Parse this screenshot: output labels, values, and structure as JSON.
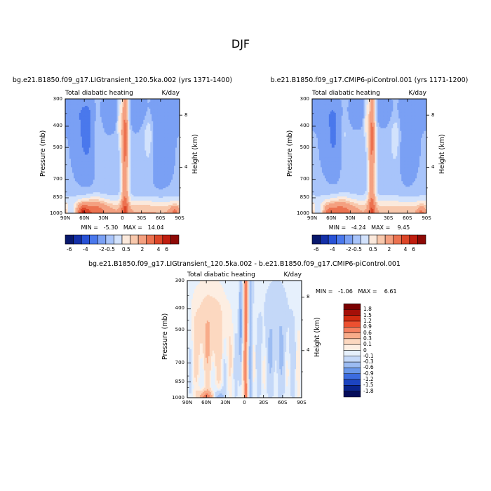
{
  "figure": {
    "title": "DJF"
  },
  "chart_data": [
    {
      "type": "heatmap",
      "title": "bg.e21.B1850.f09_g17.LIGtransient_120.5ka.002 (yrs 1371-1400)",
      "left_subtitle": "Total diabatic heating",
      "right_subtitle": "K/day",
      "xlabel": "",
      "ylabel": "Pressure (mb)",
      "y2label": "Height (km)",
      "x_ticks": [
        "90N",
        "60N",
        "30N",
        "0",
        "30S",
        "60S",
        "90S"
      ],
      "y_ticks": [
        "300",
        "400",
        "500",
        "700",
        "850",
        "1000"
      ],
      "y2_ticks": [
        "8",
        "4"
      ],
      "xlim": [
        90,
        -90
      ],
      "ylim": [
        1000,
        300
      ],
      "y_scale": "log",
      "stats": "MIN =   -5.30   MAX =   14.04",
      "min": -5.3,
      "max": 14.04,
      "colorbar_labels": [
        "-6",
        "-4",
        "-2",
        "-0.5",
        "0.5",
        "2",
        "4",
        "6"
      ]
    },
    {
      "type": "heatmap",
      "title": "b.e21.B1850.f09_g17.CMIP6-piControl.001 (yrs 1171-1200)",
      "left_subtitle": "Total diabatic heating",
      "right_subtitle": "K/day",
      "xlabel": "",
      "ylabel": "Pressure (mb)",
      "y2label": "Height (km)",
      "x_ticks": [
        "90N",
        "60N",
        "30N",
        "0",
        "30S",
        "60S",
        "90S"
      ],
      "y_ticks": [
        "300",
        "400",
        "500",
        "700",
        "850",
        "1000"
      ],
      "y2_ticks": [
        "8",
        "4"
      ],
      "xlim": [
        90,
        -90
      ],
      "ylim": [
        1000,
        300
      ],
      "y_scale": "log",
      "stats": "MIN =   -4.24   MAX =    9.45",
      "min": -4.24,
      "max": 9.45,
      "colorbar_labels": [
        "-6",
        "-4",
        "-2",
        "-0.5",
        "0.5",
        "2",
        "4",
        "6"
      ]
    },
    {
      "type": "heatmap",
      "title": "bg.e21.B1850.f09_g17.LIGtransient_120.5ka.002 - b.e21.B1850.f09_g17.CMIP6-piControl.001",
      "left_subtitle": "Total diabatic heating",
      "right_subtitle": "K/day",
      "xlabel": "",
      "ylabel": "Pressure (mb)",
      "y2label": "Height (km)",
      "x_ticks": [
        "90N",
        "60N",
        "30N",
        "0",
        "30S",
        "60S",
        "90S"
      ],
      "y_ticks": [
        "300",
        "400",
        "500",
        "700",
        "850",
        "1000"
      ],
      "y2_ticks": [
        "8",
        "4"
      ],
      "xlim": [
        90,
        -90
      ],
      "ylim": [
        1000,
        300
      ],
      "y_scale": "log",
      "stats": "MIN =   -1.06   MAX =    6.61",
      "min": -1.06,
      "max": 6.61,
      "colorbar_labels": [
        "1.8",
        "1.5",
        "1.2",
        "0.9",
        "0.6",
        "0.3",
        "0.1",
        "0",
        "-0.1",
        "-0.3",
        "-0.6",
        "-0.9",
        "-1.2",
        "-1.5",
        "-1.8"
      ]
    }
  ],
  "colors": {
    "main_scale": [
      "#08186c",
      "#1430a8",
      "#2852d6",
      "#4a78ec",
      "#7aa0f4",
      "#a8c4fa",
      "#d2e2fc",
      "#fbe9dc",
      "#f8c8ac",
      "#f4a080",
      "#ec7250",
      "#dc4628",
      "#c01e10",
      "#8e0a06"
    ],
    "diff_scale": [
      "#7a0000",
      "#a50f08",
      "#d02a10",
      "#ec5030",
      "#f48060",
      "#f8ac8a",
      "#fcd8c0",
      "#fdeee2",
      "#e6f0fc",
      "#c4d8f8",
      "#9cbcf2",
      "#6a98ea",
      "#3c6ce0",
      "#1c44c0",
      "#0a248c",
      "#040c5a"
    ]
  }
}
